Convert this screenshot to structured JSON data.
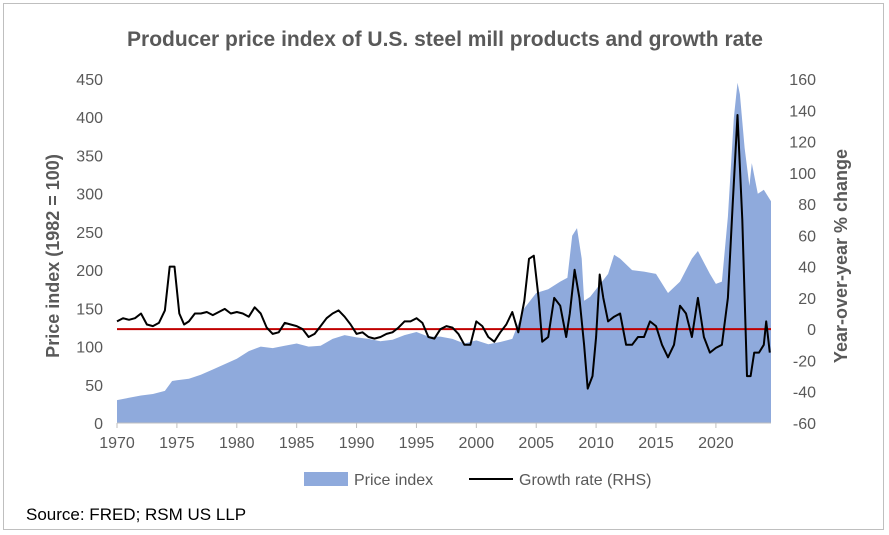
{
  "chart_data": {
    "type": "area+line",
    "title": "Producer price index of U.S. steel mill products and growth rate",
    "ylabel_left": "Price index (1982 = 100)",
    "ylabel_right": "Year-over-year % change",
    "xlim": [
      1970,
      2024.6
    ],
    "ylim_left": [
      0,
      450
    ],
    "ylim_right": [
      -60,
      160
    ],
    "x_ticks": [
      "1970",
      "1975",
      "1980",
      "1985",
      "1990",
      "1995",
      "2000",
      "2005",
      "2010",
      "2015",
      "2020"
    ],
    "y_left_ticks": [
      "0",
      "50",
      "100",
      "150",
      "200",
      "250",
      "300",
      "350",
      "400",
      "450"
    ],
    "y_right_ticks": [
      "-60",
      "-40",
      "-20",
      "0",
      "20",
      "40",
      "60",
      "80",
      "100",
      "120",
      "140",
      "160"
    ],
    "zero_line": {
      "value": 0,
      "axis": "right",
      "color": "#c00000"
    },
    "series": [
      {
        "name": "Price index",
        "axis": "left",
        "kind": "area",
        "color": "#8faadc",
        "points": [
          [
            1970,
            30
          ],
          [
            1971,
            33
          ],
          [
            1972,
            36
          ],
          [
            1973,
            38
          ],
          [
            1974,
            42
          ],
          [
            1974.6,
            55
          ],
          [
            1975,
            56
          ],
          [
            1976,
            58
          ],
          [
            1977,
            63
          ],
          [
            1978,
            70
          ],
          [
            1979,
            77
          ],
          [
            1980,
            84
          ],
          [
            1981,
            94
          ],
          [
            1982,
            100
          ],
          [
            1983,
            98
          ],
          [
            1984,
            101
          ],
          [
            1985,
            104
          ],
          [
            1986,
            100
          ],
          [
            1987,
            101
          ],
          [
            1988,
            110
          ],
          [
            1989,
            115
          ],
          [
            1990,
            112
          ],
          [
            1991,
            110
          ],
          [
            1992,
            107
          ],
          [
            1993,
            109
          ],
          [
            1994,
            115
          ],
          [
            1995,
            119
          ],
          [
            1996,
            113
          ],
          [
            1997,
            113
          ],
          [
            1998,
            110
          ],
          [
            1999,
            104
          ],
          [
            2000,
            108
          ],
          [
            2001,
            103
          ],
          [
            2002,
            106
          ],
          [
            2003,
            110
          ],
          [
            2004,
            150
          ],
          [
            2005,
            170
          ],
          [
            2006,
            175
          ],
          [
            2007,
            185
          ],
          [
            2007.6,
            190
          ],
          [
            2008,
            245
          ],
          [
            2008.4,
            255
          ],
          [
            2008.8,
            215
          ],
          [
            2009,
            160
          ],
          [
            2009.5,
            165
          ],
          [
            2010,
            175
          ],
          [
            2011,
            195
          ],
          [
            2011.5,
            220
          ],
          [
            2012,
            215
          ],
          [
            2013,
            200
          ],
          [
            2014,
            198
          ],
          [
            2015,
            195
          ],
          [
            2015.8,
            175
          ],
          [
            2016,
            170
          ],
          [
            2017,
            185
          ],
          [
            2018,
            215
          ],
          [
            2018.5,
            225
          ],
          [
            2019,
            210
          ],
          [
            2019.5,
            195
          ],
          [
            2020,
            182
          ],
          [
            2020.5,
            185
          ],
          [
            2021,
            270
          ],
          [
            2021.5,
            400
          ],
          [
            2021.8,
            445
          ],
          [
            2022,
            430
          ],
          [
            2022.4,
            360
          ],
          [
            2022.8,
            310
          ],
          [
            2023,
            340
          ],
          [
            2023.5,
            300
          ],
          [
            2024,
            305
          ],
          [
            2024.6,
            290
          ]
        ]
      },
      {
        "name": "Growth rate (RHS)",
        "axis": "right",
        "kind": "line",
        "color": "#000000",
        "points": [
          [
            1970,
            5
          ],
          [
            1970.5,
            7
          ],
          [
            1971,
            6
          ],
          [
            1971.5,
            7
          ],
          [
            1972,
            10
          ],
          [
            1972.5,
            3
          ],
          [
            1973,
            2
          ],
          [
            1973.5,
            4
          ],
          [
            1974,
            12
          ],
          [
            1974.4,
            40
          ],
          [
            1974.8,
            40
          ],
          [
            1975.2,
            10
          ],
          [
            1975.6,
            3
          ],
          [
            1976,
            5
          ],
          [
            1976.5,
            10
          ],
          [
            1977,
            10
          ],
          [
            1977.5,
            11
          ],
          [
            1978,
            9
          ],
          [
            1978.5,
            11
          ],
          [
            1979,
            13
          ],
          [
            1979.5,
            10
          ],
          [
            1980,
            11
          ],
          [
            1980.5,
            10
          ],
          [
            1981,
            8
          ],
          [
            1981.5,
            14
          ],
          [
            1982,
            10
          ],
          [
            1982.5,
            1
          ],
          [
            1983,
            -3
          ],
          [
            1983.5,
            -2
          ],
          [
            1984,
            4
          ],
          [
            1984.5,
            3
          ],
          [
            1985,
            2
          ],
          [
            1985.5,
            0
          ],
          [
            1986,
            -5
          ],
          [
            1986.5,
            -3
          ],
          [
            1987,
            2
          ],
          [
            1987.5,
            7
          ],
          [
            1988,
            10
          ],
          [
            1988.5,
            12
          ],
          [
            1989,
            8
          ],
          [
            1989.5,
            3
          ],
          [
            1990,
            -3
          ],
          [
            1990.5,
            -2
          ],
          [
            1991,
            -5
          ],
          [
            1991.5,
            -6
          ],
          [
            1992,
            -5
          ],
          [
            1992.5,
            -3
          ],
          [
            1993,
            -2
          ],
          [
            1993.5,
            1
          ],
          [
            1994,
            5
          ],
          [
            1994.5,
            5
          ],
          [
            1995,
            7
          ],
          [
            1995.5,
            4
          ],
          [
            1996,
            -5
          ],
          [
            1996.5,
            -6
          ],
          [
            1997,
            0
          ],
          [
            1997.5,
            2
          ],
          [
            1998,
            1
          ],
          [
            1998.5,
            -3
          ],
          [
            1999,
            -10
          ],
          [
            1999.5,
            -10
          ],
          [
            2000,
            5
          ],
          [
            2000.5,
            2
          ],
          [
            2001,
            -5
          ],
          [
            2001.5,
            -8
          ],
          [
            2002,
            -2
          ],
          [
            2002.5,
            3
          ],
          [
            2003,
            11
          ],
          [
            2003.5,
            -2
          ],
          [
            2004,
            18
          ],
          [
            2004.4,
            45
          ],
          [
            2004.8,
            47
          ],
          [
            2005.2,
            20
          ],
          [
            2005.5,
            -8
          ],
          [
            2006,
            -5
          ],
          [
            2006.5,
            20
          ],
          [
            2007,
            15
          ],
          [
            2007.5,
            -5
          ],
          [
            2007.8,
            10
          ],
          [
            2008.2,
            38
          ],
          [
            2008.6,
            20
          ],
          [
            2009,
            -10
          ],
          [
            2009.3,
            -38
          ],
          [
            2009.7,
            -30
          ],
          [
            2010,
            -5
          ],
          [
            2010.3,
            35
          ],
          [
            2010.6,
            20
          ],
          [
            2011,
            5
          ],
          [
            2011.5,
            8
          ],
          [
            2012,
            10
          ],
          [
            2012.5,
            -10
          ],
          [
            2013,
            -10
          ],
          [
            2013.5,
            -5
          ],
          [
            2014,
            -5
          ],
          [
            2014.5,
            5
          ],
          [
            2015,
            2
          ],
          [
            2015.5,
            -10
          ],
          [
            2016,
            -18
          ],
          [
            2016.5,
            -10
          ],
          [
            2017,
            15
          ],
          [
            2017.5,
            10
          ],
          [
            2018,
            -5
          ],
          [
            2018.5,
            20
          ],
          [
            2019,
            -5
          ],
          [
            2019.5,
            -15
          ],
          [
            2020,
            -12
          ],
          [
            2020.5,
            -10
          ],
          [
            2021,
            20
          ],
          [
            2021.4,
            80
          ],
          [
            2021.8,
            137
          ],
          [
            2022.2,
            70
          ],
          [
            2022.6,
            -30
          ],
          [
            2022.9,
            -30
          ],
          [
            2023.2,
            -15
          ],
          [
            2023.6,
            -15
          ],
          [
            2024,
            -10
          ],
          [
            2024.2,
            5
          ],
          [
            2024.5,
            -15
          ]
        ]
      }
    ],
    "legend": [
      {
        "label": "Price index",
        "swatch": "area",
        "color": "#8faadc"
      },
      {
        "label": "Growth rate (RHS)",
        "swatch": "line",
        "color": "#000000"
      }
    ],
    "legend_position": "bottom",
    "grid": false
  },
  "source": "Source: FRED; RSM US LLP",
  "colors": {
    "text": "#595959",
    "axis_line": "#bfbfbf",
    "zero_line": "#c00000"
  }
}
